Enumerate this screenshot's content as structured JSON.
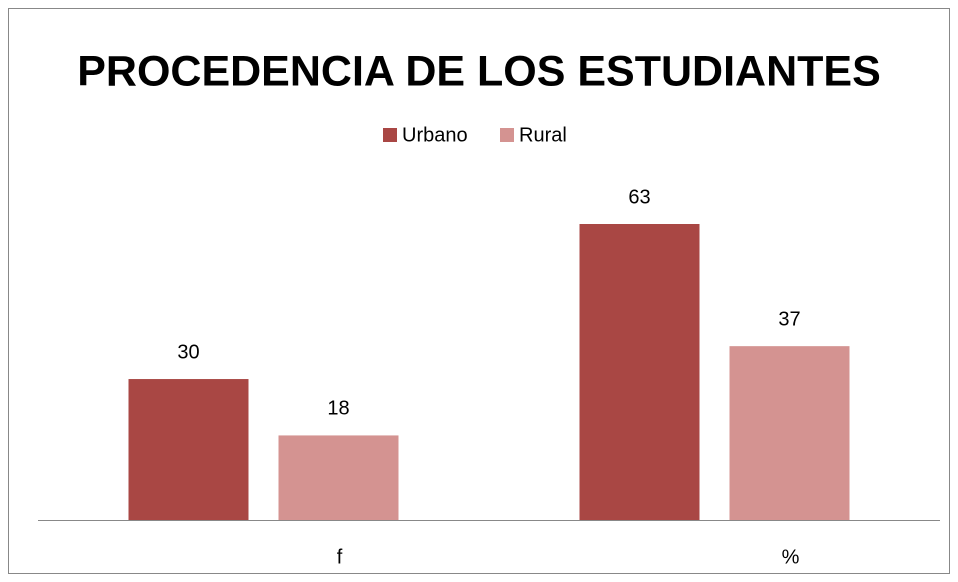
{
  "chart_data": {
    "type": "bar",
    "title": "PROCEDENCIA DE LOS ESTUDIANTES",
    "categories": [
      "f",
      "%"
    ],
    "series": [
      {
        "name": "Urbano",
        "color": "#a94744",
        "values": [
          30,
          63
        ]
      },
      {
        "name": "Rural",
        "color": "#d49391",
        "values": [
          18,
          37
        ]
      }
    ],
    "legend": "top"
  }
}
